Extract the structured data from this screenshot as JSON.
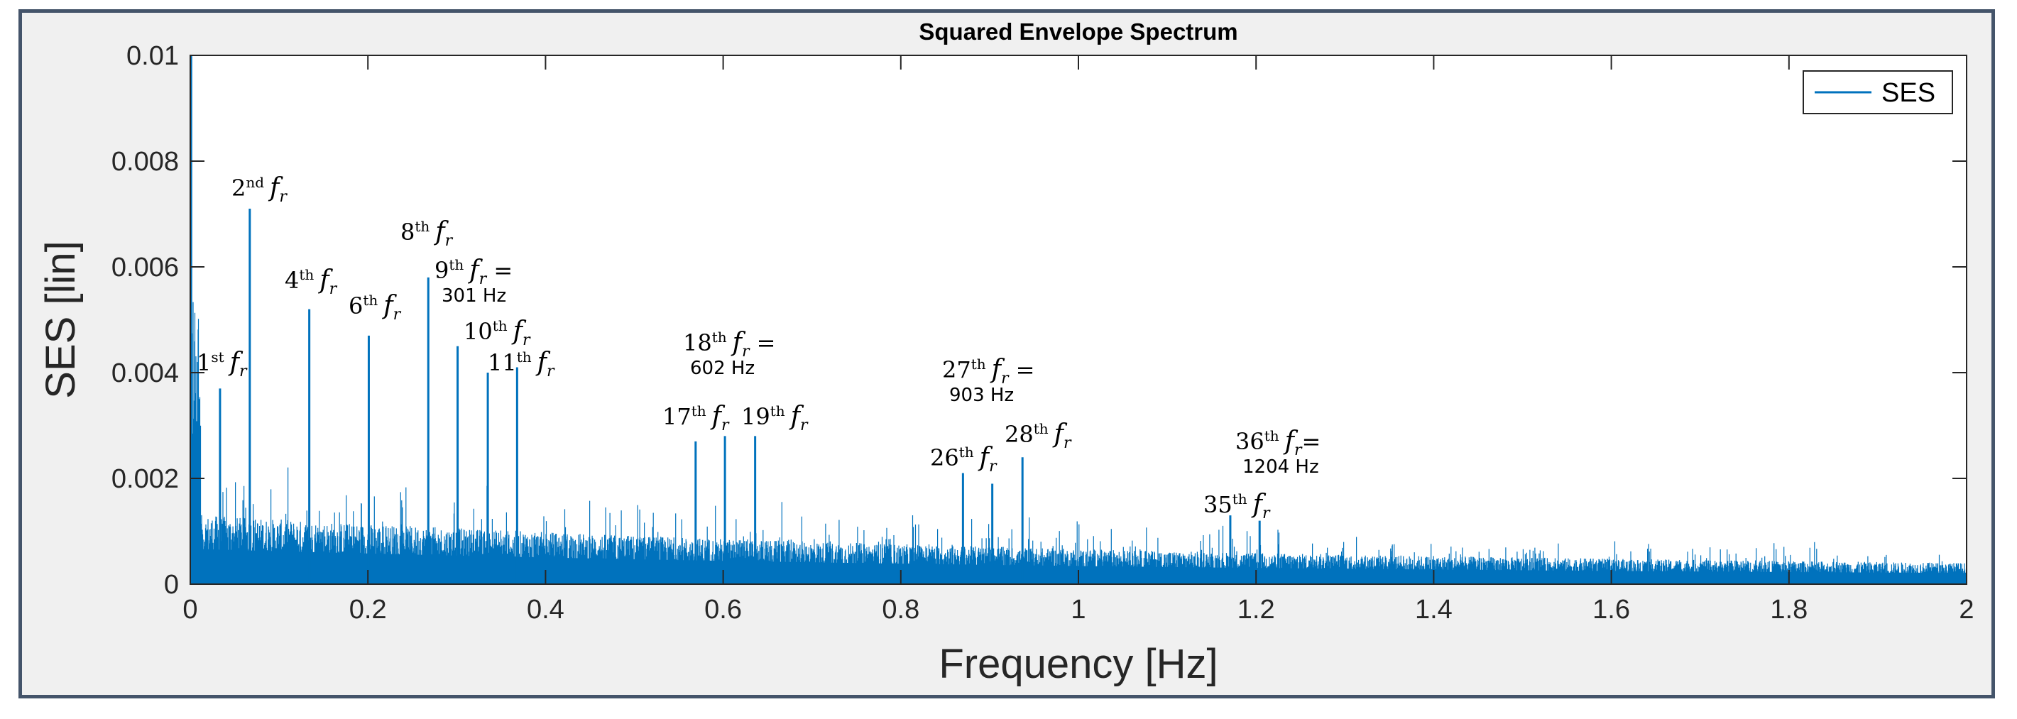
{
  "chart_data": {
    "type": "line",
    "title": "Squared Envelope Spectrum",
    "xlabel": "Frequency [Hz]",
    "ylabel": "SES [lin]",
    "xlim": [
      0,
      2
    ],
    "ylim": [
      0,
      0.01
    ],
    "xticks": [
      0,
      0.2,
      0.4,
      0.6,
      0.8,
      1,
      1.2,
      1.4,
      1.6,
      1.8,
      2
    ],
    "xtick_labels": [
      "0",
      "0.2",
      "0.4",
      "0.6",
      "0.8",
      "1",
      "1.2",
      "1.4",
      "1.6",
      "1.8",
      "2"
    ],
    "yticks": [
      0,
      0.002,
      0.004,
      0.006,
      0.008,
      0.01
    ],
    "ytick_labels": [
      "0",
      "0.002",
      "0.004",
      "0.006",
      "0.008",
      "0.01"
    ],
    "legend": {
      "entries": [
        "SES"
      ],
      "location": "top-right"
    },
    "series": [
      {
        "name": "SES",
        "color": "#0072bd",
        "peaks": [
          {
            "x": 0.0335,
            "y": 0.0037,
            "order": "1"
          },
          {
            "x": 0.067,
            "y": 0.0071,
            "order": "2"
          },
          {
            "x": 0.134,
            "y": 0.0052,
            "order": "4"
          },
          {
            "x": 0.201,
            "y": 0.0047,
            "order": "6"
          },
          {
            "x": 0.268,
            "y": 0.0058,
            "order": "8"
          },
          {
            "x": 0.301,
            "y": 0.0045,
            "order": "9"
          },
          {
            "x": 0.335,
            "y": 0.004,
            "order": "10"
          },
          {
            "x": 0.368,
            "y": 0.0041,
            "order": "11"
          },
          {
            "x": 0.569,
            "y": 0.0027,
            "order": "17"
          },
          {
            "x": 0.602,
            "y": 0.0028,
            "order": "18"
          },
          {
            "x": 0.636,
            "y": 0.0028,
            "order": "19"
          },
          {
            "x": 0.87,
            "y": 0.0021,
            "order": "26"
          },
          {
            "x": 0.903,
            "y": 0.0019,
            "order": "27"
          },
          {
            "x": 0.937,
            "y": 0.0024,
            "order": "28"
          },
          {
            "x": 1.171,
            "y": 0.0013,
            "order": "35"
          },
          {
            "x": 1.204,
            "y": 0.0012,
            "order": "36"
          }
        ]
      }
    ],
    "annotations": [
      {
        "ord": "1",
        "sup": "st",
        "line2": ""
      },
      {
        "ord": "2",
        "sup": "nd",
        "line2": ""
      },
      {
        "ord": "4",
        "sup": "th",
        "line2": ""
      },
      {
        "ord": "6",
        "sup": "th",
        "line2": ""
      },
      {
        "ord": "8",
        "sup": "th",
        "line2": ""
      },
      {
        "ord": "9",
        "sup": "th",
        "eq": " =",
        "line2": "301 Hz"
      },
      {
        "ord": "10",
        "sup": "th",
        "line2": ""
      },
      {
        "ord": "11",
        "sup": "th",
        "line2": ""
      },
      {
        "ord": "18",
        "sup": "th",
        "eq": " =",
        "line2": "602 Hz"
      },
      {
        "ord": "17",
        "sup": "th",
        "line2": ""
      },
      {
        "ord": "19",
        "sup": "th",
        "line2": ""
      },
      {
        "ord": "27",
        "sup": "th",
        "eq": " =",
        "line2": "903 Hz"
      },
      {
        "ord": "28",
        "sup": "th",
        "line2": ""
      },
      {
        "ord": "26",
        "sup": "th",
        "line2": ""
      },
      {
        "ord": "36",
        "sup": "th",
        "eq": "=",
        "line2": "1204 Hz"
      },
      {
        "ord": "35",
        "sup": "th",
        "line2": ""
      }
    ],
    "symbol": "f",
    "symbol_sub": "r"
  }
}
